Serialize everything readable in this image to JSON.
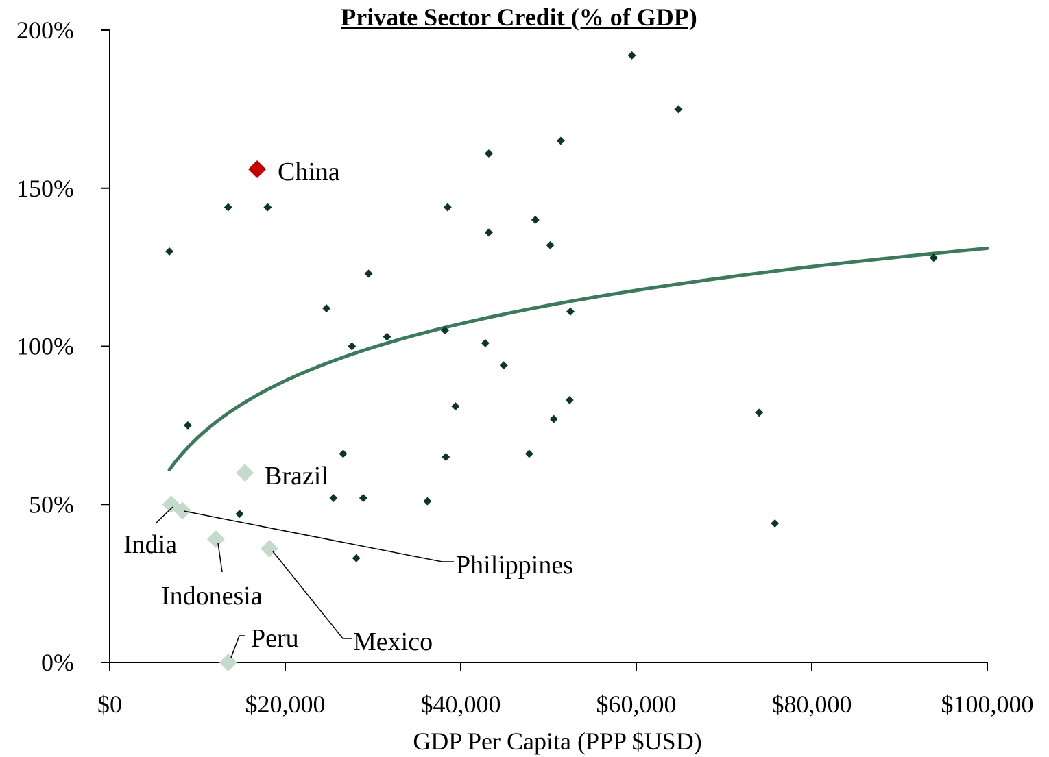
{
  "chart_data": {
    "type": "scatter",
    "title": "Private Sector Credit (% of GDP)",
    "xlabel": "GDP Per Capita (PPP $USD)",
    "ylabel": "",
    "xlim": [
      0,
      100000
    ],
    "ylim": [
      0,
      200
    ],
    "x_ticks": [
      "$0",
      "$20,000",
      "$40,000",
      "$60,000",
      "$80,000",
      "$100,000"
    ],
    "y_ticks": [
      "0%",
      "50%",
      "100%",
      "150%",
      "200%"
    ],
    "grid": false,
    "legend": "none",
    "colors": {
      "countries": "#0e3628",
      "highlighted": "#c0c0c0",
      "china": "#c00000",
      "trend": "#3d7a5c",
      "labeled_markers": "#c5d9cc"
    },
    "series": [
      {
        "points": [
          [
            6800,
            130
          ],
          [
            13500,
            144
          ],
          [
            18000,
            144
          ],
          [
            8900,
            75
          ],
          [
            14800,
            47
          ],
          [
            24700,
            112
          ],
          [
            25500,
            52
          ],
          [
            26600,
            66
          ],
          [
            27600,
            100
          ],
          [
            28100,
            33
          ],
          [
            28900,
            52
          ],
          [
            29500,
            123
          ],
          [
            31600,
            103
          ],
          [
            36200,
            51
          ],
          [
            38200,
            105
          ],
          [
            38300,
            65
          ],
          [
            38500,
            144
          ],
          [
            39400,
            81
          ],
          [
            42800,
            101
          ],
          [
            43200,
            161
          ],
          [
            43200,
            136
          ],
          [
            44900,
            94
          ],
          [
            47800,
            66
          ],
          [
            48500,
            140
          ],
          [
            50200,
            132
          ],
          [
            50600,
            77
          ],
          [
            51400,
            165
          ],
          [
            52400,
            83
          ],
          [
            52500,
            111
          ],
          [
            59500,
            192
          ],
          [
            64800,
            175
          ],
          [
            74000,
            79
          ],
          [
            75800,
            44
          ],
          [
            93900,
            128
          ]
        ]
      },
      {
        "labeled_points": [
          {
            "name": "China",
            "x": 16800,
            "y": 156
          },
          {
            "name": "Brazil",
            "x": 15400,
            "y": 60
          },
          {
            "name": "India",
            "x": 7000,
            "y": 50
          },
          {
            "name": "Philippines",
            "x": 8300,
            "y": 48
          },
          {
            "name": "Indonesia",
            "x": 12100,
            "y": 39
          },
          {
            "name": "Mexico",
            "x": 18200,
            "y": 36
          },
          {
            "name": "Peru",
            "x": 13500,
            "y": 0
          }
        ]
      }
    ],
    "trendline": {
      "type": "logarithmic",
      "x_range": [
        6800,
        100000
      ],
      "y_at_start": 61,
      "y_at_end": 131
    }
  }
}
